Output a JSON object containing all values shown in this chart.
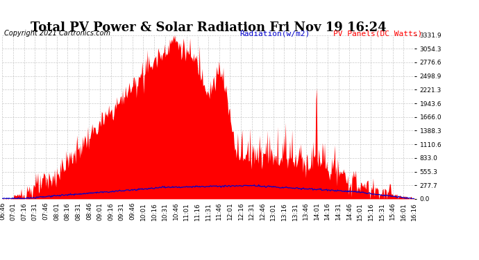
{
  "title": "Total PV Power & Solar Radiation Fri Nov 19 16:24",
  "copyright": "Copyright 2021 Cartronics.com",
  "legend_radiation": "Radiation(w/m2)",
  "legend_pv": "PV Panels(DC Watts)",
  "y_ticks": [
    0.0,
    277.7,
    555.3,
    833.0,
    1110.6,
    1388.3,
    1666.0,
    1943.6,
    2221.3,
    2498.9,
    2776.6,
    3054.3,
    3331.9
  ],
  "y_max": 3331.9,
  "pv_color": "#FF0000",
  "radiation_color": "#0000CC",
  "background_color": "#FFFFFF",
  "plot_bg_color": "#FFFFFF",
  "grid_color": "#BBBBBB",
  "title_fontsize": 13,
  "copyright_fontsize": 7,
  "legend_fontsize": 8,
  "tick_fontsize": 6.5,
  "num_points": 570
}
